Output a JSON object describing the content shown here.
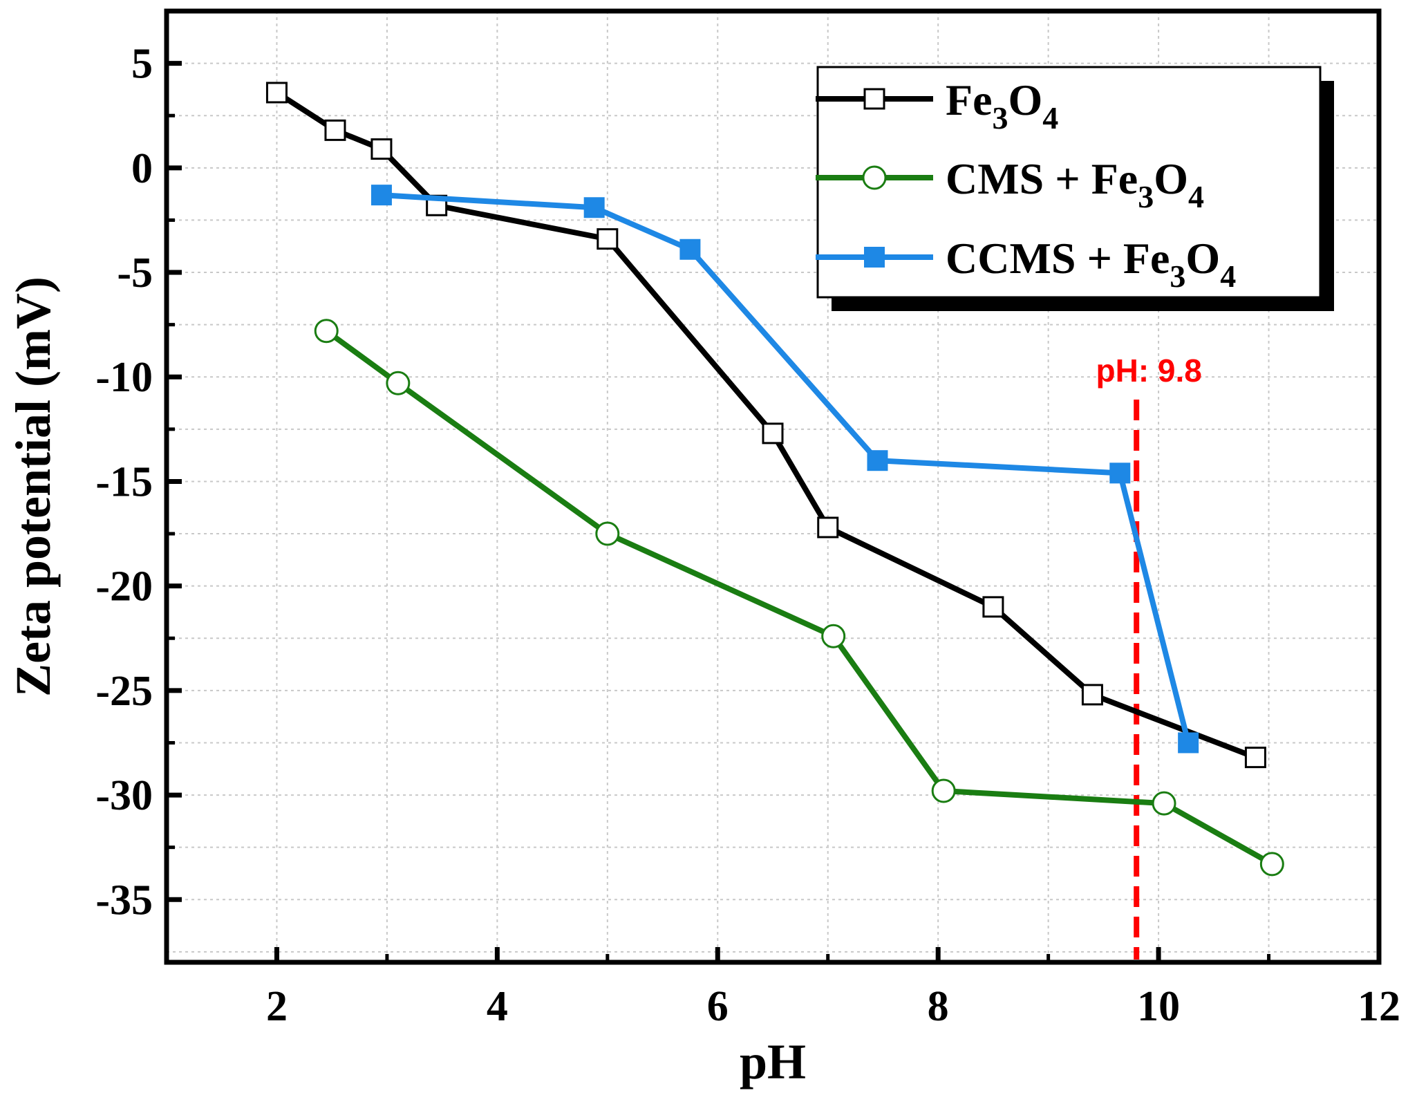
{
  "chart_data": {
    "type": "line",
    "title": "",
    "xlabel": "pH",
    "ylabel": "Zeta potential (mV)",
    "xlim": [
      1,
      12
    ],
    "ylim": [
      -38,
      7.5
    ],
    "xticks": [
      2,
      4,
      6,
      8,
      10,
      12
    ],
    "yticks": [
      5,
      0,
      -5,
      -10,
      -15,
      -20,
      -25,
      -30,
      -35
    ],
    "grid": true,
    "legend_position": "top-right",
    "series": [
      {
        "name": "Fe3O4",
        "label_base": "Fe",
        "label_sub1": "3",
        "label_mid": "O",
        "label_sub2": "4",
        "color": "#000000",
        "marker": "open-square",
        "x": [
          2.0,
          2.53,
          2.95,
          3.45,
          5.0,
          6.5,
          7.0,
          8.5,
          9.4,
          10.88
        ],
        "y": [
          3.6,
          1.8,
          0.9,
          -1.8,
          -3.4,
          -12.7,
          -17.2,
          -21.0,
          -25.2,
          -28.2
        ]
      },
      {
        "name": "CMS + Fe3O4",
        "label_base": "CMS + Fe",
        "label_sub1": "3",
        "label_mid": "O",
        "label_sub2": "4",
        "color": "#1a7d12",
        "marker": "open-circle",
        "x": [
          2.45,
          3.1,
          5.0,
          7.05,
          8.05,
          10.05,
          11.03
        ],
        "y": [
          -7.8,
          -10.3,
          -17.5,
          -22.4,
          -29.8,
          -30.4,
          -33.3
        ]
      },
      {
        "name": "CCMS + Fe3O4",
        "label_base": "CCMS + Fe",
        "label_sub1": "3",
        "label_mid": "O",
        "label_sub2": "4",
        "color": "#1e88e5",
        "marker": "filled-square",
        "x": [
          2.95,
          4.88,
          5.75,
          7.45,
          9.65,
          10.27
        ],
        "y": [
          -1.3,
          -1.9,
          -3.9,
          -14.0,
          -14.6,
          -27.5
        ]
      }
    ],
    "annotations": [
      {
        "text": "pH: 9.8",
        "x": 9.8,
        "color": "#ff0000",
        "style": "dashed-vertical-line"
      }
    ]
  }
}
